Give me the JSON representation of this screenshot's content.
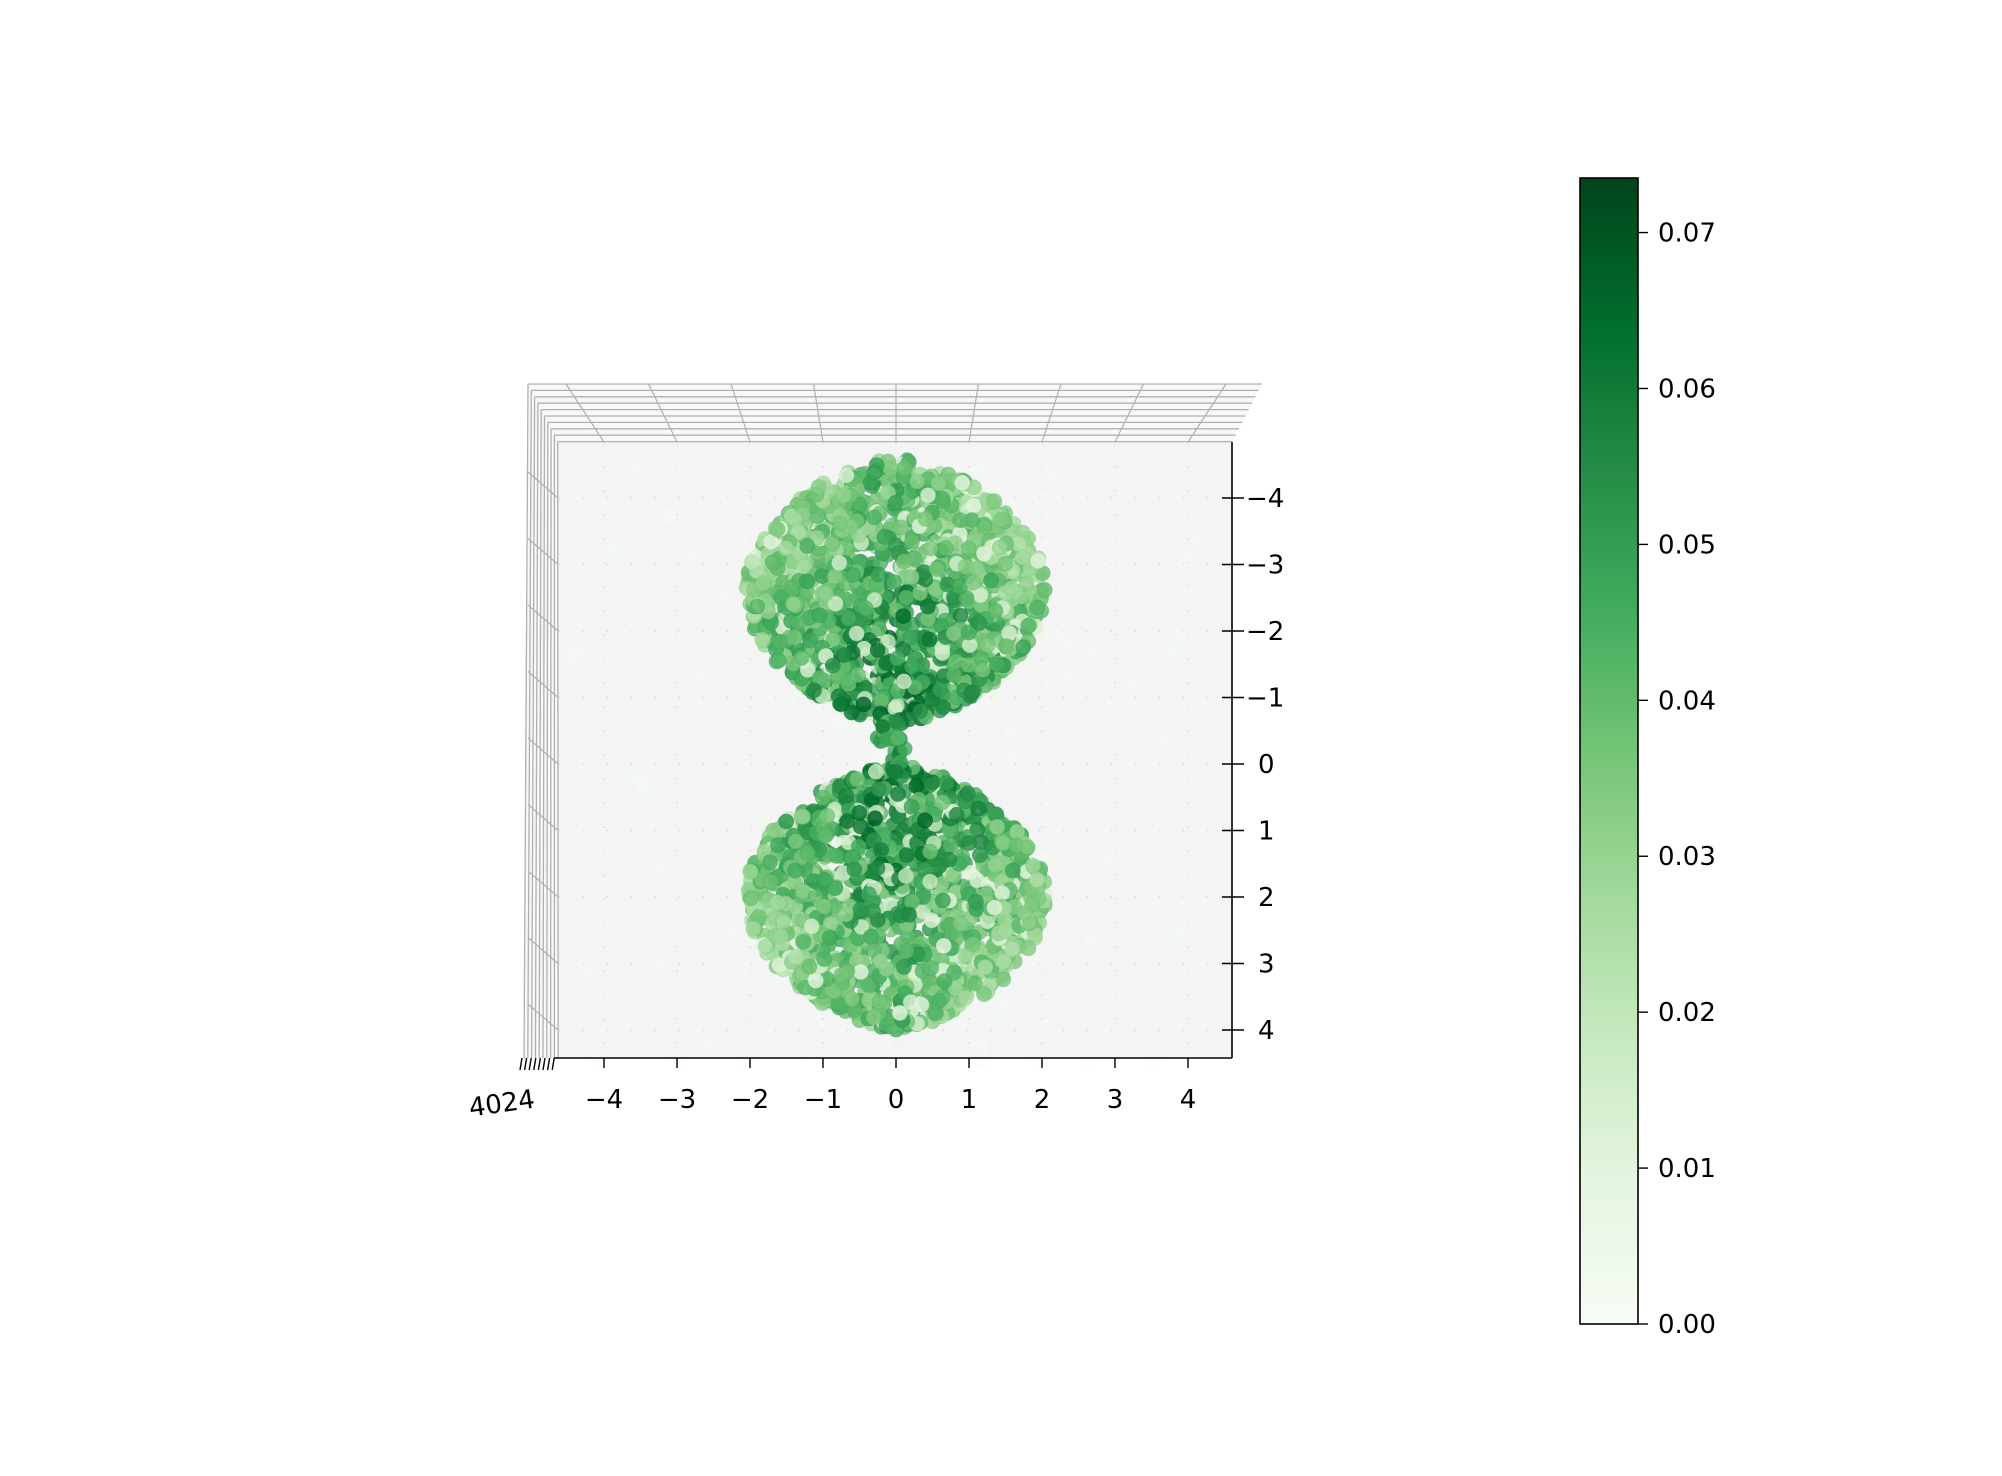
{
  "chart_data": {
    "type": "scatter",
    "projection": "3d",
    "view": "top-down (looking along z axis)",
    "title": "",
    "xlabel": "",
    "ylabel": "",
    "zlabel": "",
    "xlim": [
      -4.6,
      4.6
    ],
    "ylim": [
      -4.6,
      4.6
    ],
    "x_ticks": [
      -4,
      -3,
      -2,
      -1,
      0,
      1,
      2,
      3,
      4
    ],
    "x_tick_labels": [
      "−4",
      "−3",
      "−2",
      "−1",
      "0",
      "1",
      "2",
      "3",
      "4"
    ],
    "y_ticks": [
      -4,
      -3,
      -2,
      -1,
      0,
      1,
      2,
      3,
      4
    ],
    "y_tick_labels": [
      "−4",
      "−3",
      "−2",
      "−1",
      "0",
      "1",
      "2",
      "3",
      "4"
    ],
    "z_tick_labels_overlapping": "4024",
    "y_axis_inverted": true,
    "grid": true,
    "pane_color": "#f4f4f4",
    "colormap": "Greens",
    "color_range": [
      0.0,
      0.073
    ],
    "description": "Probability density sampled on a 3D grid; points drawn with alpha, dense in two lobes along the y axis (like a p orbital).",
    "lobes": [
      {
        "center_x": 0.0,
        "center_y": -2.6,
        "radius_x": 2.05,
        "radius_y": 2.0
      },
      {
        "center_x": 0.0,
        "center_y": 2.0,
        "radius_x": 2.05,
        "radius_y": 2.0
      }
    ],
    "neck": {
      "x": 0.0,
      "y_from": -0.7,
      "y_to": 0.2
    },
    "colorbar": {
      "ticks": [
        0.0,
        0.01,
        0.02,
        0.03,
        0.04,
        0.05,
        0.06,
        0.07
      ],
      "tick_labels": [
        "0.00",
        "0.01",
        "0.02",
        "0.03",
        "0.04",
        "0.05",
        "0.06",
        "0.07"
      ],
      "vmin": 0.0,
      "vmax": 0.0735,
      "colors": [
        "#f7fcf5",
        "#e5f5e0",
        "#c7e9c0",
        "#a1d99b",
        "#74c476",
        "#41ab5d",
        "#238b45",
        "#006d2c",
        "#00441b"
      ]
    }
  }
}
